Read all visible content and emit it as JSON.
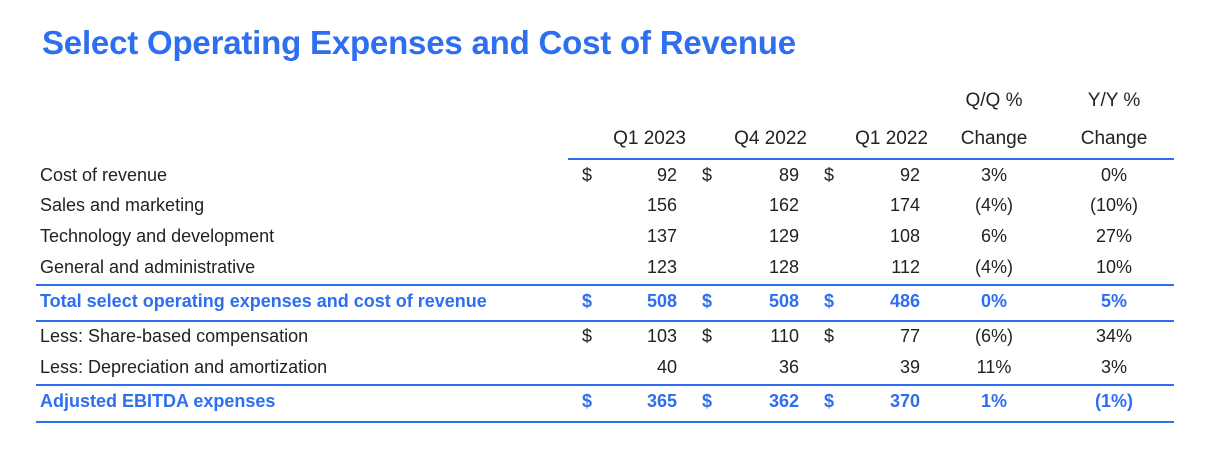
{
  "title": "Select Operating Expenses and Cost of Revenue",
  "headers": {
    "q1_2023": "Q1 2023",
    "q4_2022": "Q4 2022",
    "q1_2022": "Q1 2022",
    "qq_line1": "Q/Q %",
    "qq_line2": "Change",
    "yy_line1": "Y/Y %",
    "yy_line2": "Change"
  },
  "rows": [
    {
      "label": "Cost of revenue",
      "d1": "$",
      "v1": "92",
      "d2": "$",
      "v2": "89",
      "d3": "$",
      "v3": "92",
      "qq": "3%",
      "yy": "0%"
    },
    {
      "label": "Sales and marketing",
      "d1": "",
      "v1": "156",
      "d2": "",
      "v2": "162",
      "d3": "",
      "v3": "174",
      "qq": "(4%)",
      "yy": "(10%)"
    },
    {
      "label": "Technology and development",
      "d1": "",
      "v1": "137",
      "d2": "",
      "v2": "129",
      "d3": "",
      "v3": "108",
      "qq": "6%",
      "yy": "27%"
    },
    {
      "label": "General and administrative",
      "d1": "",
      "v1": "123",
      "d2": "",
      "v2": "128",
      "d3": "",
      "v3": "112",
      "qq": "(4%)",
      "yy": "10%"
    },
    {
      "label": "Total select operating expenses and cost of revenue",
      "d1": "$",
      "v1": "508",
      "d2": "$",
      "v2": "508",
      "d3": "$",
      "v3": "486",
      "qq": "0%",
      "yy": "5%"
    },
    {
      "label": "Less: Share-based compensation",
      "d1": "$",
      "v1": "103",
      "d2": "$",
      "v2": "110",
      "d3": "$",
      "v3": "77",
      "qq": "(6%)",
      "yy": "34%"
    },
    {
      "label": "Less: Depreciation and amortization",
      "d1": "",
      "v1": "40",
      "d2": "",
      "v2": "36",
      "d3": "",
      "v3": "39",
      "qq": "11%",
      "yy": "3%"
    },
    {
      "label": "Adjusted EBITDA expenses",
      "d1": "$",
      "v1": "365",
      "d2": "$",
      "v2": "362",
      "d3": "$",
      "v3": "370",
      "qq": "1%",
      "yy": "(1%)"
    }
  ],
  "colors": {
    "accent": "#2e6ef0",
    "text": "#222222"
  }
}
